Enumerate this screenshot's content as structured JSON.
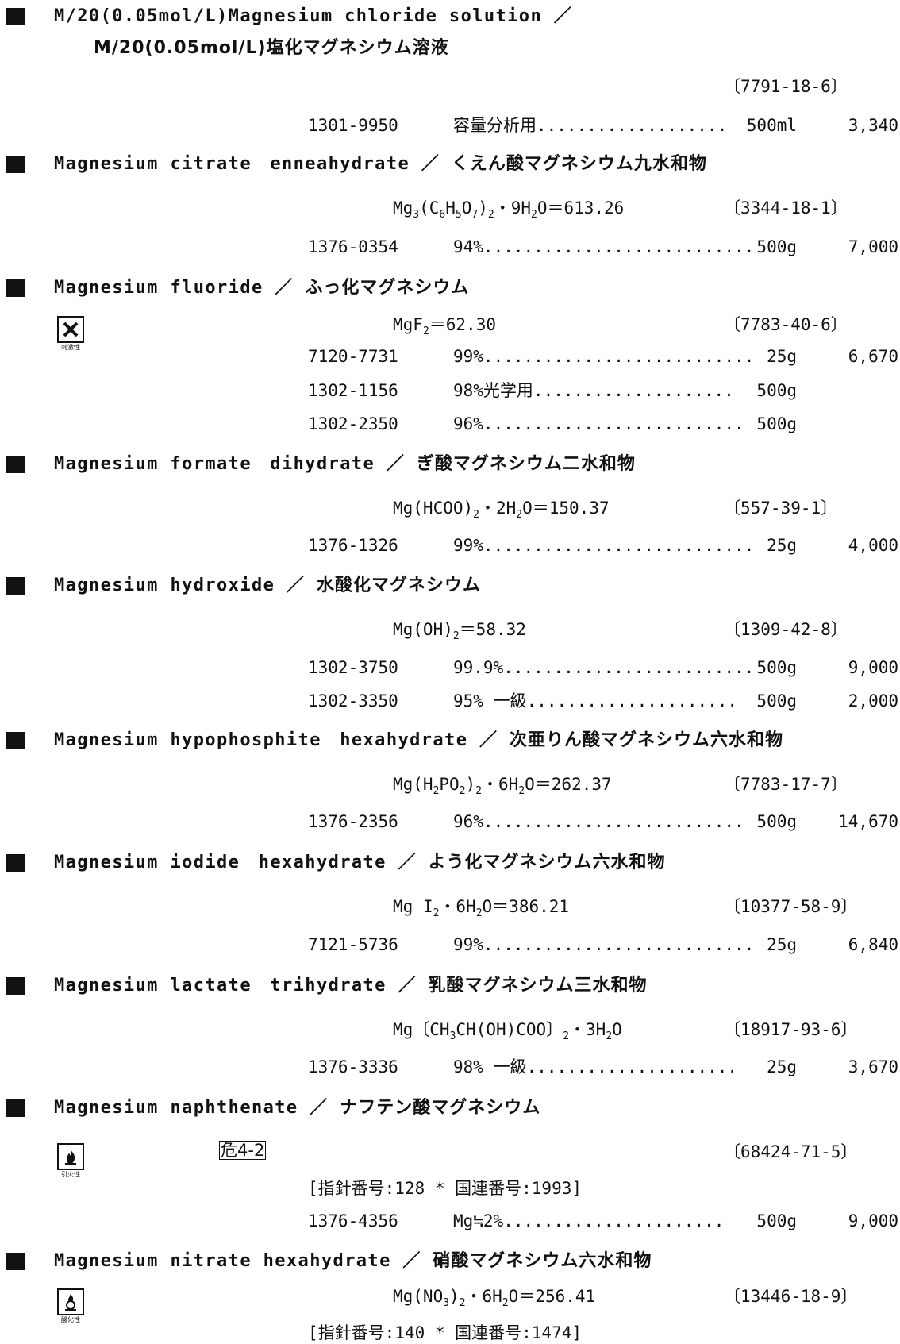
{
  "entries": [
    {
      "name_en": "M/20(0.05mol/L)Magnesium chloride solution ／",
      "name_jp": "M/20(0.05mol/L)塩化マグネシウム溶液",
      "cas": "〔7791-18-6〕",
      "products": [
        {
          "code": "1301-9950",
          "desc": "容量分析用...................",
          "size": "500ml",
          "price": "3,340"
        }
      ]
    },
    {
      "name_en": "Magnesium citrate　enneahydrate ／",
      "name_jp": "くえん酸マグネシウム九水和物",
      "formula_html": "Mg<sub>3</sub>(C<sub>6</sub>H<sub>5</sub>O<sub>7</sub>)<sub>2</sub>・9H<sub>2</sub>O＝613.26",
      "cas": "〔3344-18-1〕",
      "products": [
        {
          "code": "1376-0354",
          "desc": "94%...........................",
          "size": "500g",
          "price": "7,000"
        }
      ]
    },
    {
      "name_en": "Magnesium fluoride ／",
      "name_jp": "ふっ化マグネシウム",
      "pictogram": {
        "icon": "x-mark-icon",
        "label": "刺激性"
      },
      "formula_html": "MgF<sub>2</sub>＝62.30",
      "cas": "〔7783-40-6〕",
      "products": [
        {
          "code": "7120-7731",
          "desc": "99%...........................",
          "size": "25g",
          "price": "6,670"
        },
        {
          "code": "1302-1156",
          "desc": "98%光学用....................",
          "size": "500g",
          "price": ""
        },
        {
          "code": "1302-2350",
          "desc": "96%..........................",
          "size": "500g",
          "price": ""
        }
      ]
    },
    {
      "name_en": "Magnesium formate　dihydrate ／",
      "name_jp": "ぎ酸マグネシウム二水和物",
      "formula_html": "Mg(HCOO)<sub>2</sub>・2H<sub>2</sub>O＝150.37",
      "cas": "〔557-39-1〕",
      "products": [
        {
          "code": "1376-1326",
          "desc": "99%...........................",
          "size": "25g",
          "price": "4,000"
        }
      ]
    },
    {
      "name_en": "Magnesium hydroxide ／",
      "name_jp": "水酸化マグネシウム",
      "formula_html": "Mg(OH)<sub>2</sub>＝58.32",
      "cas": "〔1309-42-8〕",
      "products": [
        {
          "code": "1302-3750",
          "desc": "99.9%.........................",
          "size": "500g",
          "price": "9,000"
        },
        {
          "code": "1302-3350",
          "desc": "95% 一級.....................",
          "size": "500g",
          "price": "2,000"
        }
      ]
    },
    {
      "name_en": "Magnesium hypophosphite　hexahydrate ／",
      "name_jp": "次亜りん酸マグネシウム六水和物",
      "formula_html": "Mg(H<sub>2</sub>PO<sub>2</sub>)<sub>2</sub>・6H<sub>2</sub>O＝262.37",
      "cas": "〔7783-17-7〕",
      "products": [
        {
          "code": "1376-2356",
          "desc": "96%..........................",
          "size": "500g",
          "price": "14,670"
        }
      ]
    },
    {
      "name_en": "Magnesium iodide　hexahydrate ／",
      "name_jp": "よう化マグネシウム六水和物",
      "formula_html": "Mg I<sub>2</sub>・6H<sub>2</sub>O＝386.21",
      "cas": "〔10377-58-9〕",
      "products": [
        {
          "code": "7121-5736",
          "desc": "99%...........................",
          "size": "25g",
          "price": "6,840"
        }
      ]
    },
    {
      "name_en": "Magnesium lactate　trihydrate ／",
      "name_jp": "乳酸マグネシウム三水和物",
      "formula_html": "Mg〔CH<sub>3</sub>CH(OH)COO〕<sub>2</sub>・3H<sub>2</sub>O",
      "cas": "〔18917-93-6〕",
      "products": [
        {
          "code": "1376-3336",
          "desc": "98% 一級.....................",
          "size": "25g",
          "price": "3,670"
        }
      ]
    },
    {
      "name_en": "Magnesium naphthenate ／",
      "name_jp": "ナフテン酸マグネシウム",
      "pictogram": {
        "icon": "flame-icon",
        "label": "引火性"
      },
      "hazard_class": "危4-2",
      "cas": "〔68424-71-5〕",
      "note": "[指針番号:128 * 国連番号:1993]",
      "products": [
        {
          "code": "1376-4356",
          "desc": "Mg≒2%......................",
          "size": "500g",
          "price": "9,000"
        }
      ]
    },
    {
      "name_en": "Magnesium nitrate hexahydrate ／",
      "name_jp": "硝酸マグネシウム六水和物",
      "pictogram": {
        "icon": "flame-over-circle-icon",
        "label": "酸化性"
      },
      "formula_html": "Mg(NO<sub>3</sub>)<sub>2</sub>・6H<sub>2</sub>O＝256.41",
      "cas": "〔13446-18-9〕",
      "note": "[指針番号:140 * 国連番号:1474]",
      "products": []
    }
  ]
}
